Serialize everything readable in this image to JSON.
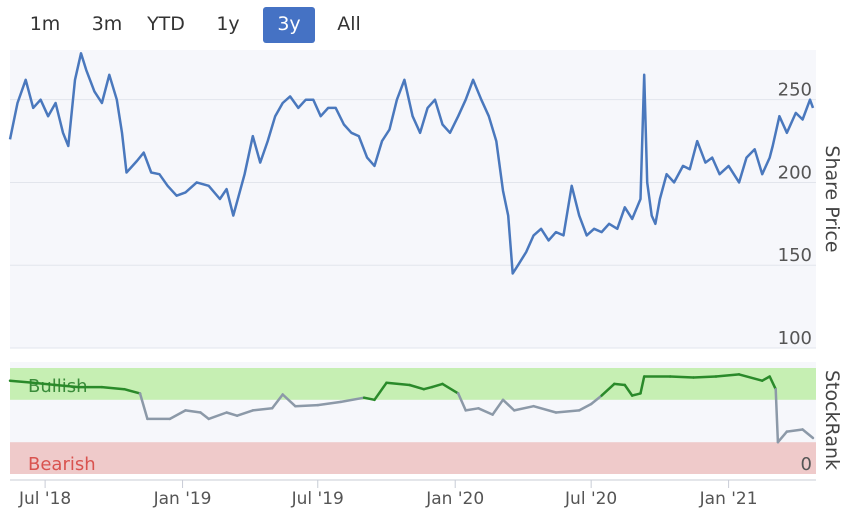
{
  "range_selector": {
    "buttons": [
      "1m",
      "3m",
      "YTD",
      "1y",
      "3y",
      "All"
    ],
    "active": "3y"
  },
  "chart_data": [
    {
      "type": "line",
      "title": "",
      "ylabel": "Share Price",
      "ylim": [
        100,
        280
      ],
      "yticks": [
        100,
        150,
        200,
        250
      ],
      "grid": true,
      "color": "#4a78bd",
      "series": [
        {
          "points": [
            [
              "2018-05-15",
              226
            ],
            [
              "2018-05-25",
              248
            ],
            [
              "2018-06-05",
              262
            ],
            [
              "2018-06-15",
              245
            ],
            [
              "2018-06-25",
              250
            ],
            [
              "2018-07-05",
              240
            ],
            [
              "2018-07-15",
              248
            ],
            [
              "2018-07-25",
              230
            ],
            [
              "2018-08-01",
              222
            ],
            [
              "2018-08-10",
              262
            ],
            [
              "2018-08-18",
              278
            ],
            [
              "2018-08-25",
              268
            ],
            [
              "2018-09-05",
              255
            ],
            [
              "2018-09-15",
              248
            ],
            [
              "2018-09-25",
              265
            ],
            [
              "2018-10-05",
              250
            ],
            [
              "2018-10-12",
              230
            ],
            [
              "2018-10-18",
              206
            ],
            [
              "2018-11-01",
              213
            ],
            [
              "2018-11-10",
              218
            ],
            [
              "2018-11-20",
              206
            ],
            [
              "2018-12-01",
              205
            ],
            [
              "2018-12-12",
              198
            ],
            [
              "2018-12-24",
              192
            ],
            [
              "2019-01-05",
              194
            ],
            [
              "2019-01-20",
              200
            ],
            [
              "2019-02-05",
              198
            ],
            [
              "2019-02-20",
              190
            ],
            [
              "2019-03-01",
              196
            ],
            [
              "2019-03-10",
              180
            ],
            [
              "2019-03-25",
              205
            ],
            [
              "2019-04-05",
              228
            ],
            [
              "2019-04-15",
              212
            ],
            [
              "2019-04-25",
              225
            ],
            [
              "2019-05-05",
              240
            ],
            [
              "2019-05-15",
              248
            ],
            [
              "2019-05-25",
              252
            ],
            [
              "2019-06-05",
              245
            ],
            [
              "2019-06-15",
              250
            ],
            [
              "2019-06-25",
              250
            ],
            [
              "2019-07-05",
              240
            ],
            [
              "2019-07-15",
              245
            ],
            [
              "2019-07-25",
              245
            ],
            [
              "2019-08-05",
              235
            ],
            [
              "2019-08-15",
              230
            ],
            [
              "2019-08-25",
              228
            ],
            [
              "2019-09-05",
              215
            ],
            [
              "2019-09-15",
              210
            ],
            [
              "2019-09-25",
              225
            ],
            [
              "2019-10-05",
              232
            ],
            [
              "2019-10-15",
              250
            ],
            [
              "2019-10-25",
              262
            ],
            [
              "2019-11-05",
              240
            ],
            [
              "2019-11-15",
              230
            ],
            [
              "2019-11-25",
              245
            ],
            [
              "2019-12-05",
              250
            ],
            [
              "2019-12-15",
              235
            ],
            [
              "2019-12-25",
              230
            ],
            [
              "2020-01-05",
              240
            ],
            [
              "2020-01-15",
              250
            ],
            [
              "2020-01-25",
              262
            ],
            [
              "2020-02-05",
              250
            ],
            [
              "2020-02-15",
              240
            ],
            [
              "2020-02-25",
              225
            ],
            [
              "2020-03-05",
              195
            ],
            [
              "2020-03-12",
              180
            ],
            [
              "2020-03-18",
              145
            ],
            [
              "2020-03-25",
              150
            ],
            [
              "2020-04-05",
              158
            ],
            [
              "2020-04-15",
              168
            ],
            [
              "2020-04-25",
              172
            ],
            [
              "2020-05-05",
              165
            ],
            [
              "2020-05-15",
              170
            ],
            [
              "2020-05-25",
              168
            ],
            [
              "2020-06-05",
              198
            ],
            [
              "2020-06-15",
              180
            ],
            [
              "2020-06-25",
              168
            ],
            [
              "2020-07-05",
              172
            ],
            [
              "2020-07-15",
              170
            ],
            [
              "2020-07-25",
              175
            ],
            [
              "2020-08-05",
              172
            ],
            [
              "2020-08-15",
              185
            ],
            [
              "2020-08-25",
              178
            ],
            [
              "2020-09-05",
              190
            ],
            [
              "2020-09-10",
              265
            ],
            [
              "2020-09-14",
              200
            ],
            [
              "2020-09-20",
              180
            ],
            [
              "2020-09-25",
              175
            ],
            [
              "2020-10-01",
              190
            ],
            [
              "2020-10-10",
              205
            ],
            [
              "2020-10-20",
              200
            ],
            [
              "2020-11-01",
              210
            ],
            [
              "2020-11-10",
              208
            ],
            [
              "2020-11-20",
              225
            ],
            [
              "2020-12-01",
              212
            ],
            [
              "2020-12-10",
              215
            ],
            [
              "2020-12-20",
              205
            ],
            [
              "2021-01-01",
              210
            ],
            [
              "2021-01-15",
              200
            ],
            [
              "2021-01-25",
              215
            ],
            [
              "2021-02-05",
              220
            ],
            [
              "2021-02-15",
              205
            ],
            [
              "2021-02-25",
              215
            ],
            [
              "2021-03-01",
              222
            ],
            [
              "2021-03-10",
              240
            ],
            [
              "2021-03-20",
              230
            ],
            [
              "2021-04-01",
              242
            ],
            [
              "2021-04-10",
              238
            ],
            [
              "2021-04-20",
              250
            ],
            [
              "2021-04-24",
              245
            ]
          ]
        }
      ]
    },
    {
      "type": "line",
      "title": "",
      "ylabel": "StockRank",
      "ylim": [
        0,
        100
      ],
      "yticks": [
        0
      ],
      "zones": [
        {
          "label": "Bullish",
          "from": 70,
          "to": 100,
          "fill": "#c6efb3",
          "text_color": "#3a8c3a"
        },
        {
          "label": "Bearish",
          "from": 0,
          "to": 30,
          "fill": "#efcaca",
          "text_color": "#d9534f"
        }
      ],
      "bullish_threshold": 70,
      "line_colors": {
        "bullish": "#2a8a2a",
        "neutral": "#8c99a8"
      },
      "series": [
        {
          "points": [
            [
              "2018-05-15",
              88
            ],
            [
              "2018-06-15",
              86
            ],
            [
              "2018-07-15",
              84
            ],
            [
              "2018-08-15",
              82
            ],
            [
              "2018-09-15",
              82
            ],
            [
              "2018-10-15",
              80
            ],
            [
              "2018-11-05",
              76
            ],
            [
              "2018-11-15",
              52
            ],
            [
              "2018-12-15",
              52
            ],
            [
              "2019-01-05",
              60
            ],
            [
              "2019-01-25",
              58
            ],
            [
              "2019-02-05",
              52
            ],
            [
              "2019-03-01",
              58
            ],
            [
              "2019-03-15",
              55
            ],
            [
              "2019-04-05",
              60
            ],
            [
              "2019-05-01",
              62
            ],
            [
              "2019-05-15",
              75
            ],
            [
              "2019-06-01",
              64
            ],
            [
              "2019-07-01",
              65
            ],
            [
              "2019-08-01",
              68
            ],
            [
              "2019-09-01",
              72
            ],
            [
              "2019-09-15",
              70
            ],
            [
              "2019-10-01",
              86
            ],
            [
              "2019-11-01",
              84
            ],
            [
              "2019-11-20",
              80
            ],
            [
              "2019-12-01",
              82
            ],
            [
              "2019-12-15",
              85
            ],
            [
              "2020-01-05",
              76
            ],
            [
              "2020-01-15",
              60
            ],
            [
              "2020-02-01",
              62
            ],
            [
              "2020-02-20",
              56
            ],
            [
              "2020-03-05",
              70
            ],
            [
              "2020-03-20",
              60
            ],
            [
              "2020-04-15",
              64
            ],
            [
              "2020-05-15",
              58
            ],
            [
              "2020-06-15",
              60
            ],
            [
              "2020-07-01",
              66
            ],
            [
              "2020-07-15",
              74
            ],
            [
              "2020-08-01",
              85
            ],
            [
              "2020-08-15",
              84
            ],
            [
              "2020-08-25",
              74
            ],
            [
              "2020-09-05",
              76
            ],
            [
              "2020-09-10",
              92
            ],
            [
              "2020-10-15",
              92
            ],
            [
              "2020-11-15",
              91
            ],
            [
              "2020-12-15",
              92
            ],
            [
              "2021-01-15",
              94
            ],
            [
              "2021-02-15",
              88
            ],
            [
              "2021-02-25",
              92
            ],
            [
              "2021-03-05",
              80
            ],
            [
              "2021-03-08",
              30
            ],
            [
              "2021-03-20",
              40
            ],
            [
              "2021-04-10",
              42
            ],
            [
              "2021-04-24",
              34
            ]
          ]
        }
      ]
    }
  ],
  "x_axis": {
    "min": "2018-05-15",
    "max": "2021-04-28",
    "ticks": [
      {
        "date": "2018-07-01",
        "label": "Jul '18"
      },
      {
        "date": "2019-01-01",
        "label": "Jan '19"
      },
      {
        "date": "2019-07-01",
        "label": "Jul '19"
      },
      {
        "date": "2020-01-01",
        "label": "Jan '20"
      },
      {
        "date": "2020-07-01",
        "label": "Jul '20"
      },
      {
        "date": "2021-01-01",
        "label": "Jan '21"
      }
    ]
  }
}
